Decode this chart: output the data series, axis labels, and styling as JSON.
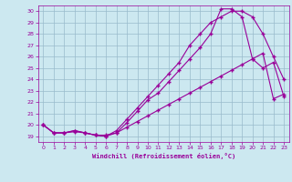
{
  "bg_color": "#cce8f0",
  "grid_color": "#99bbcc",
  "line_color": "#990099",
  "xlabel": "Windchill (Refroidissement éolien,°C)",
  "xlim": [
    -0.5,
    23.5
  ],
  "ylim": [
    18.5,
    30.5
  ],
  "xticks": [
    0,
    1,
    2,
    3,
    4,
    5,
    6,
    7,
    8,
    9,
    10,
    11,
    12,
    13,
    14,
    15,
    16,
    17,
    18,
    19,
    20,
    21,
    22,
    23
  ],
  "yticks": [
    19,
    20,
    21,
    22,
    23,
    24,
    25,
    26,
    27,
    28,
    29,
    30
  ],
  "line1_x": [
    0,
    1,
    2,
    3,
    4,
    5,
    6,
    7,
    8,
    9,
    10,
    11,
    12,
    13,
    14,
    15,
    16,
    17,
    18,
    19,
    20,
    21,
    22,
    23
  ],
  "line1_y": [
    20.0,
    19.3,
    19.3,
    19.5,
    19.3,
    19.1,
    19.0,
    19.5,
    20.5,
    21.5,
    22.5,
    23.5,
    24.5,
    25.5,
    27.0,
    28.0,
    29.0,
    29.5,
    30.0,
    30.0,
    29.5,
    28.0,
    26.0,
    24.0
  ],
  "line2_x": [
    0,
    1,
    2,
    3,
    4,
    5,
    6,
    7,
    8,
    9,
    10,
    11,
    12,
    13,
    14,
    15,
    16,
    17,
    18,
    19,
    20,
    21,
    22,
    23
  ],
  "line2_y": [
    20.0,
    19.3,
    19.3,
    19.5,
    19.3,
    19.1,
    19.0,
    19.3,
    20.2,
    21.2,
    22.2,
    22.8,
    23.8,
    24.8,
    25.8,
    26.8,
    28.0,
    30.2,
    30.2,
    29.5,
    25.8,
    25.0,
    25.5,
    22.5
  ],
  "line3_x": [
    0,
    1,
    2,
    3,
    4,
    5,
    6,
    7,
    8,
    9,
    10,
    11,
    12,
    13,
    14,
    15,
    16,
    17,
    18,
    19,
    20,
    21,
    22,
    23
  ],
  "line3_y": [
    20.0,
    19.3,
    19.3,
    19.4,
    19.3,
    19.1,
    19.1,
    19.3,
    19.8,
    20.3,
    20.8,
    21.3,
    21.8,
    22.3,
    22.8,
    23.3,
    23.8,
    24.3,
    24.8,
    25.3,
    25.8,
    26.3,
    22.3,
    22.7
  ],
  "marker": "+"
}
